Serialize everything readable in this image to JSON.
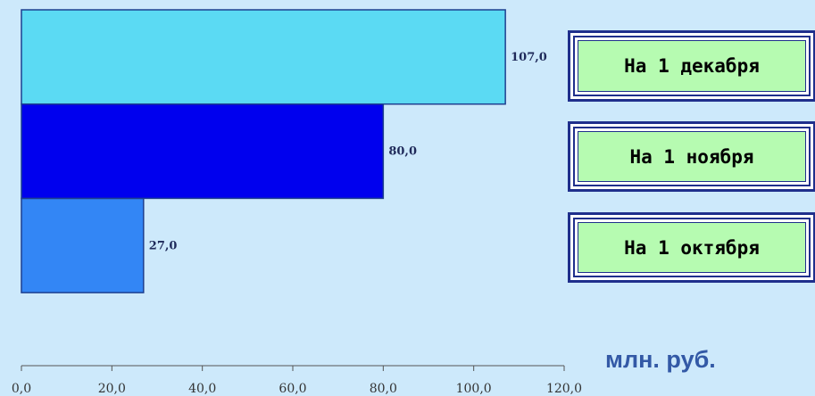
{
  "chart_data": {
    "type": "bar",
    "orientation": "horizontal",
    "categories": [
      "На 1 октября",
      "На 1 ноября",
      "На 1 декабря"
    ],
    "values": [
      27.0,
      80.0,
      107.0
    ],
    "value_labels": [
      "27,0",
      "80,0",
      "107,0"
    ],
    "colors": [
      "#3386f5",
      "#0000ee",
      "#5bdaf3"
    ],
    "xlim": [
      0,
      120
    ],
    "x_ticks": [
      0,
      20,
      40,
      60,
      80,
      100,
      120
    ],
    "x_tick_labels": [
      "0,0",
      "20,0",
      "40,0",
      "60,0",
      "80,0",
      "100,0",
      "120,0"
    ],
    "unit": "млн. руб.",
    "legend": [
      "На 1 декабря",
      "На 1 ноября",
      "На 1 октября"
    ],
    "grid": false
  }
}
